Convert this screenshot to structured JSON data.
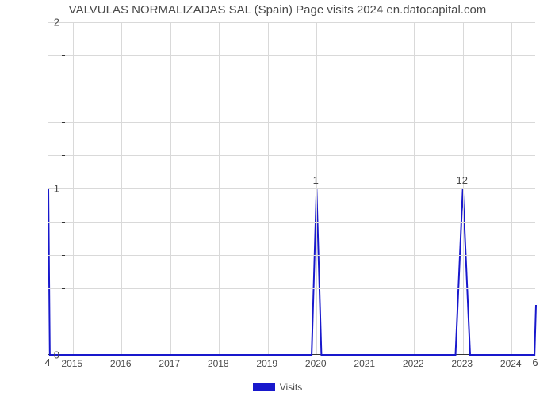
{
  "chart": {
    "type": "line",
    "title": "VALVULAS NORMALIZADAS SAL (Spain) Page visits 2024 en.datocapital.com",
    "title_fontsize": 15,
    "title_color": "#4a4a4a",
    "background_color": "#ffffff",
    "plot_border_color": "#333333",
    "grid_color": "#d9d9d9",
    "line_color": "#1818cc",
    "line_width": 2,
    "x_categories": [
      "2015",
      "2016",
      "2017",
      "2018",
      "2019",
      "2020",
      "2021",
      "2022",
      "2023",
      "2024"
    ],
    "series": {
      "name": "Visits",
      "points": [
        {
          "x": 0.0,
          "y": 1.0,
          "label": "4",
          "label_above": false
        },
        {
          "x": 0.03,
          "y": 0.0,
          "label": null,
          "label_above": false
        },
        {
          "x": 5.4,
          "y": 0.0,
          "label": null,
          "label_above": false
        },
        {
          "x": 5.5,
          "y": 1.0,
          "label": "1",
          "label_above": true
        },
        {
          "x": 5.6,
          "y": 0.0,
          "label": null,
          "label_above": false
        },
        {
          "x": 8.35,
          "y": 0.0,
          "label": null,
          "label_above": false
        },
        {
          "x": 8.5,
          "y": 1.0,
          "label": "12",
          "label_above": true
        },
        {
          "x": 8.65,
          "y": 0.0,
          "label": null,
          "label_above": false
        },
        {
          "x": 9.97,
          "y": 0.0,
          "label": null,
          "label_above": false
        },
        {
          "x": 10.0,
          "y": 0.3,
          "label": "6",
          "label_above": false
        }
      ]
    },
    "xlim": [
      0,
      10
    ],
    "ylim": [
      0,
      2
    ],
    "y_major_ticks": [
      0,
      1,
      2
    ],
    "y_minor_count_between": 4,
    "x_tick_positions": [
      0.5,
      1.5,
      2.5,
      3.5,
      4.5,
      5.5,
      6.5,
      7.5,
      8.5,
      9.5
    ],
    "x_gridlines": [
      0.5,
      1.5,
      2.5,
      3.5,
      4.5,
      5.5,
      6.5,
      7.5,
      8.5,
      9.5
    ],
    "legend_label": "Visits",
    "label_fontsize": 12,
    "tick_fontsize": 13
  }
}
